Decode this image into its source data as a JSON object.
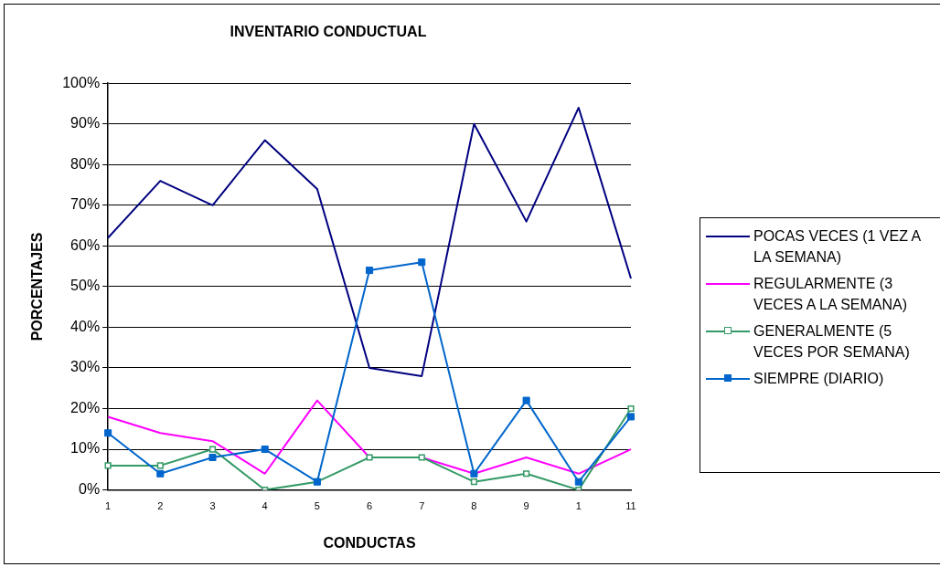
{
  "chart_data": {
    "type": "line",
    "title": "INVENTARIO CONDUCTUAL",
    "xlabel": "CONDUCTAS",
    "ylabel": "PORCENTAJES",
    "categories": [
      "1",
      "2",
      "3",
      "4",
      "5",
      "6",
      "7",
      "8",
      "9",
      "1",
      "11"
    ],
    "ylim": [
      0,
      100
    ],
    "yticks": [
      {
        "value": 0,
        "label": "0%"
      },
      {
        "value": 10,
        "label": "10%"
      },
      {
        "value": 20,
        "label": "20%"
      },
      {
        "value": 30,
        "label": "30%"
      },
      {
        "value": 40,
        "label": "40%"
      },
      {
        "value": 50,
        "label": "50%"
      },
      {
        "value": 60,
        "label": "60%"
      },
      {
        "value": 70,
        "label": "70%"
      },
      {
        "value": 80,
        "label": "80%"
      },
      {
        "value": 90,
        "label": "90%"
      },
      {
        "value": 100,
        "label": "100%"
      }
    ],
    "grid": "y",
    "legend": "right",
    "series": [
      {
        "name": "POCAS VECES (1 VEZ A LA SEMANA)",
        "color": "#000080",
        "marker": "none",
        "values": [
          62,
          76,
          70,
          86,
          74,
          30,
          28,
          90,
          66,
          94,
          52
        ]
      },
      {
        "name": "REGULARMENTE (3 VECES A LA SEMANA)",
        "color": "#ff00ff",
        "marker": "none",
        "values": [
          18,
          14,
          12,
          4,
          22,
          8,
          8,
          4,
          8,
          4,
          10
        ]
      },
      {
        "name": "GENERALMENTE (5 VECES POR SEMANA)",
        "color": "#339966",
        "marker": "square-open",
        "values": [
          6,
          6,
          10,
          0,
          2,
          8,
          8,
          2,
          4,
          0,
          20
        ]
      },
      {
        "name": "SIEMPRE (DIARIO)",
        "color": "#0066cc",
        "marker": "square",
        "values": [
          14,
          4,
          8,
          10,
          2,
          54,
          56,
          4,
          22,
          2,
          18
        ]
      }
    ]
  }
}
